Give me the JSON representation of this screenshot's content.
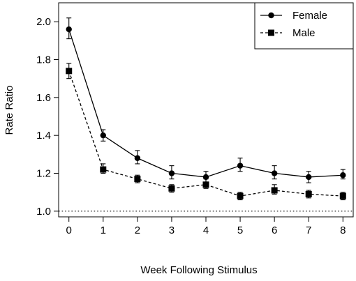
{
  "chart_data": {
    "type": "line",
    "title": "",
    "xlabel": "Week Following Stimulus",
    "ylabel": "Rate Ratio",
    "x": [
      0,
      1,
      2,
      3,
      4,
      5,
      6,
      7,
      8
    ],
    "x_ticks": [
      "0",
      "1",
      "2",
      "3",
      "4",
      "5",
      "6",
      "7",
      "8"
    ],
    "y_ticks": [
      "1.0",
      "1.2",
      "1.4",
      "1.6",
      "1.8",
      "2.0"
    ],
    "xlim": [
      -0.3,
      8.3
    ],
    "ylim": [
      0.97,
      2.1
    ],
    "reference_line": {
      "y": 1.0,
      "style": "dotted"
    },
    "grid": false,
    "legend_position": "top-right",
    "series": [
      {
        "name": "Female",
        "marker": "circle",
        "line_style": "solid",
        "color": "#000000",
        "values": [
          1.96,
          1.4,
          1.28,
          1.2,
          1.18,
          1.24,
          1.2,
          1.18,
          1.19
        ],
        "error_low": [
          1.91,
          1.37,
          1.25,
          1.17,
          1.15,
          1.21,
          1.17,
          1.15,
          1.17
        ],
        "error_high": [
          2.02,
          1.43,
          1.32,
          1.24,
          1.21,
          1.28,
          1.24,
          1.21,
          1.22
        ]
      },
      {
        "name": "Male",
        "marker": "square",
        "line_style": "dashed",
        "color": "#000000",
        "values": [
          1.74,
          1.22,
          1.17,
          1.12,
          1.14,
          1.08,
          1.11,
          1.09,
          1.08
        ],
        "error_low": [
          1.7,
          1.2,
          1.15,
          1.1,
          1.12,
          1.06,
          1.09,
          1.07,
          1.06
        ],
        "error_high": [
          1.78,
          1.25,
          1.19,
          1.14,
          1.17,
          1.1,
          1.14,
          1.11,
          1.1
        ]
      }
    ]
  }
}
